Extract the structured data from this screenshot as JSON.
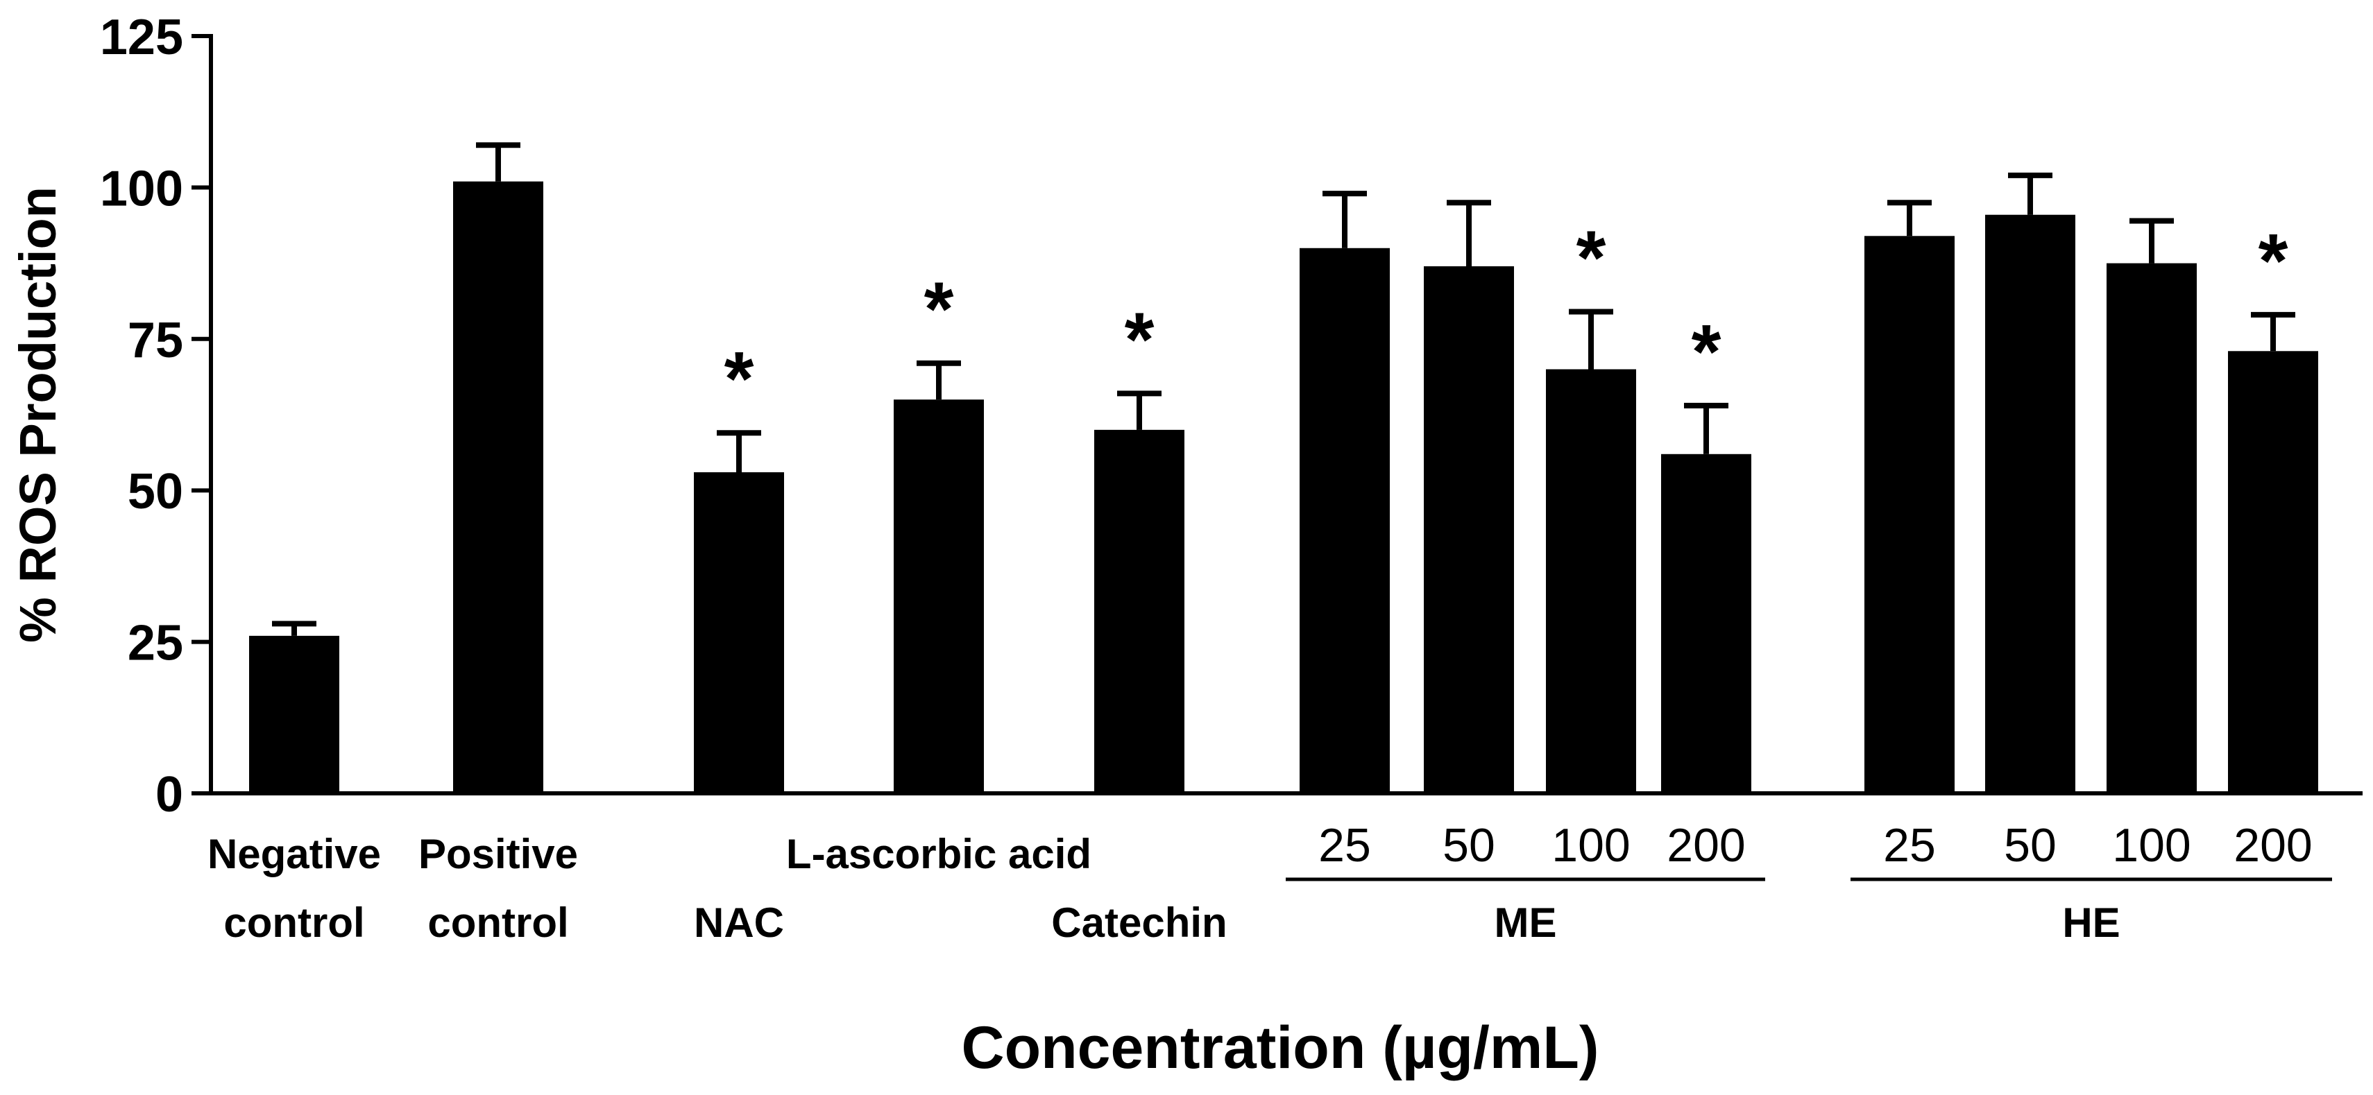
{
  "chart_data": {
    "type": "bar",
    "ylabel": "% ROS Production",
    "xlabel": "Concentration (µg/mL)",
    "ylim": [
      0,
      125
    ],
    "y_ticks": [
      "0",
      "25",
      "50",
      "75",
      "100",
      "125"
    ],
    "grid": false,
    "bars": [
      {
        "value": 26,
        "error": 2,
        "significant": false
      },
      {
        "value": 101,
        "error": 6,
        "significant": false
      },
      {
        "value": 53,
        "error": 6.5,
        "significant": true
      },
      {
        "value": 65,
        "error": 6,
        "significant": true
      },
      {
        "value": 60,
        "error": 6,
        "significant": true
      },
      {
        "value": 90,
        "error": 9,
        "significant": false
      },
      {
        "value": 87,
        "error": 10.5,
        "significant": false
      },
      {
        "value": 70,
        "error": 9.5,
        "significant": true
      },
      {
        "value": 56,
        "error": 8,
        "significant": true
      },
      {
        "value": 92,
        "error": 5.5,
        "significant": false
      },
      {
        "value": 95.5,
        "error": 6.5,
        "significant": false
      },
      {
        "value": 87.5,
        "error": 7,
        "significant": false
      },
      {
        "value": 73,
        "error": 6,
        "significant": true
      }
    ],
    "significance_marker": "*",
    "category_labels": [
      {
        "bar": 0,
        "lines": [
          "Negative",
          "control"
        ]
      },
      {
        "bar": 1,
        "lines": [
          "Positive",
          "control"
        ]
      },
      {
        "bar": 2,
        "lines": [
          "NAC"
        ]
      },
      {
        "bar": 3,
        "lines": [
          "L-ascorbic acid"
        ]
      },
      {
        "bar": 4,
        "lines": [
          "Catechin"
        ]
      }
    ],
    "groups": [
      {
        "name": "ME",
        "bars": [
          5,
          6,
          7,
          8
        ],
        "concentrations": [
          "25",
          "50",
          "100",
          "200"
        ]
      },
      {
        "name": "HE",
        "bars": [
          9,
          10,
          11,
          12
        ],
        "concentrations": [
          "25",
          "50",
          "100",
          "200"
        ]
      }
    ],
    "colors": {
      "bar": "#000000",
      "axis": "#000000",
      "background": "#ffffff"
    }
  }
}
